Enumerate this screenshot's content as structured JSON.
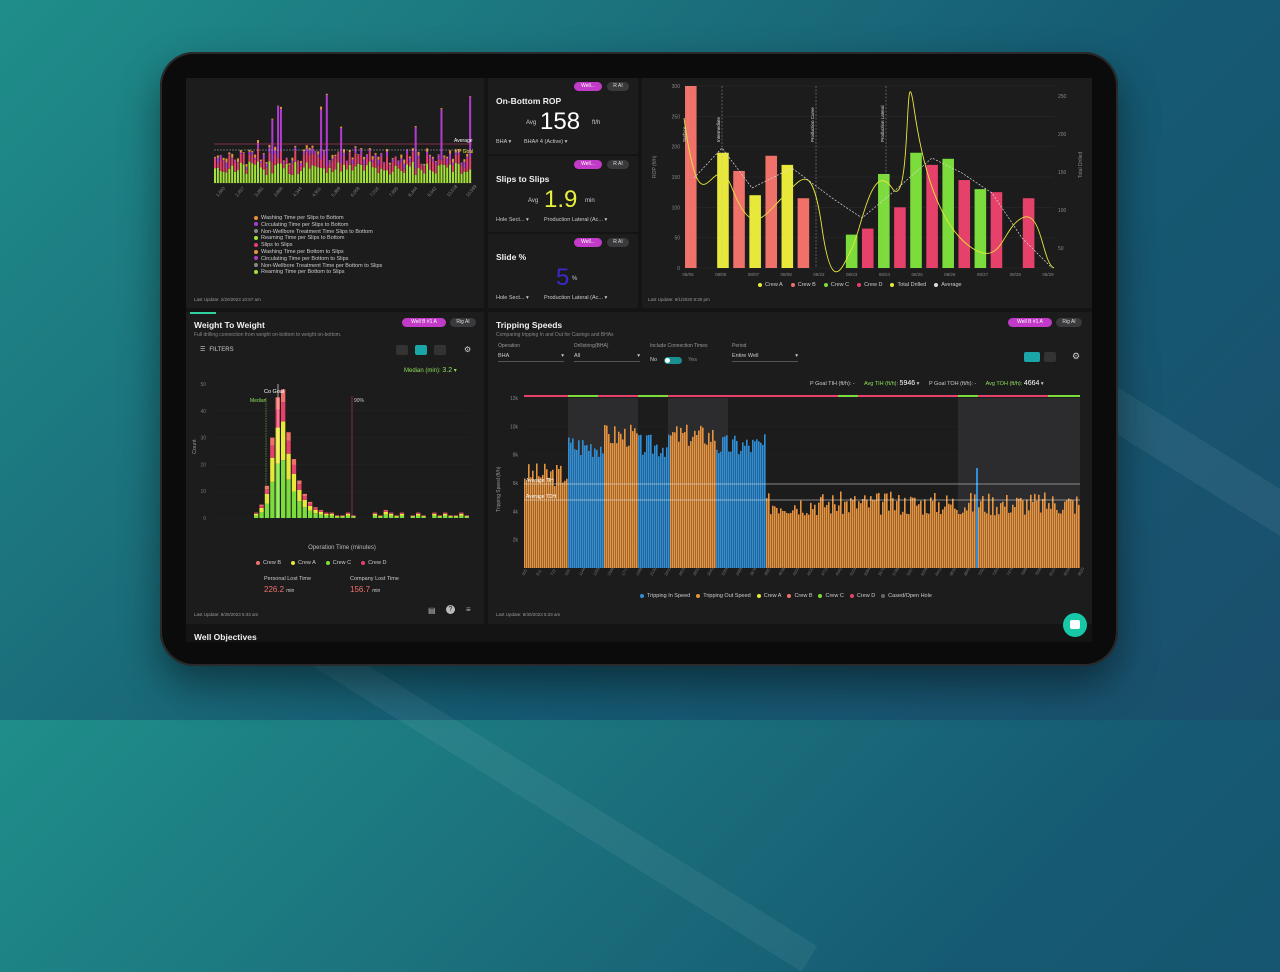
{
  "colors": {
    "magenta": "#c23bc8",
    "green": "#7cdc3c",
    "pink": "#e5416b",
    "yellow": "#e8e83a",
    "salmon": "#f0706a",
    "orange": "#e8943e",
    "blue": "#2f8fd8",
    "lime": "#a6e33a"
  },
  "top_left": {
    "legend": [
      "Washing Time per Slips to Bottom",
      "Circulating Time per Slips to Bottom",
      "Non-Wellbore Treatment Time Slips to Bottom",
      "Reaming Time per Slips to Bottom",
      "Slips to Slips",
      "Washing Time per Bottom to Slips",
      "Circulating Time per Bottom to Slips",
      "Non-Wellbore Treatment Time per Bottom to Slips",
      "Reaming Time per Bottom to Slips"
    ],
    "legend_colors": [
      "#e8943e",
      "#b03cd0",
      "#888888",
      "#a6e33a",
      "#e5416b",
      "#e8943e",
      "#b03cd0",
      "#888888",
      "#a6e33a"
    ],
    "average_label": "Average",
    "goal_label": "P Goal",
    "last_update": "Last Update: 2/20/2023 10:57 am",
    "x_ticks": [
      "1,660",
      "2,437",
      "3,391",
      "3,866",
      "4,344",
      "4,911",
      "5,389",
      "6,058",
      "7,016",
      "7,935",
      "8,344",
      "9,542",
      "10,518",
      "10,589"
    ]
  },
  "kpis": [
    {
      "title": "On-Bottom ROP",
      "avg_label": "Avg",
      "value": "158",
      "unit": "ft/h",
      "dd1": "BHA",
      "dd2": "BHA# 4 (Active)",
      "pill1": "Well...",
      "pill2": "R AI",
      "value_color": "#ffffff"
    },
    {
      "title": "Slips to Slips",
      "avg_label": "Avg",
      "value": "1.9",
      "unit": "min",
      "dd1": "Hole Sect...",
      "dd2": "Production Lateral (Ac...",
      "pill1": "Well...",
      "pill2": "R AI",
      "value_color": "#e8f03a"
    },
    {
      "title": "Slide %",
      "avg_label": "",
      "value": "5",
      "unit": "%",
      "dd1": "Hole Sect...",
      "dd2": "Production Lateral (Ac...",
      "pill1": "Well...",
      "pill2": "R AI",
      "value_color": "#3a2ac8"
    }
  ],
  "rop_chart": {
    "y_ticks": [
      "300",
      "250",
      "200",
      "150",
      "100",
      "50",
      "0"
    ],
    "y2_ticks": [
      "250",
      "200",
      "150",
      "100",
      "50"
    ],
    "ylabel": "ROP (ft/h)",
    "y2label": "Total Drilled",
    "x_ticks": [
      "08/05",
      "08/06",
      "08/07",
      "08/08",
      "08/22",
      "08/23",
      "08/24",
      "08/25",
      "08/26",
      "08/27",
      "08/28",
      "08/29"
    ],
    "annotations": [
      "Surface",
      "Intermediate",
      "Production Curve",
      "Production Lateral"
    ],
    "legend": [
      {
        "name": "Crew A",
        "color": "#e8e83a"
      },
      {
        "name": "Crew B",
        "color": "#f0706a"
      },
      {
        "name": "Crew C",
        "color": "#7cdc3c"
      },
      {
        "name": "Crew D",
        "color": "#e5416b"
      },
      {
        "name": "Total Drilled",
        "color": "#e8e83a"
      },
      {
        "name": "Average",
        "color": "#dddddd"
      }
    ],
    "last_update": "Last Update: 9/1/2020 8:30 pm"
  },
  "wtw": {
    "title": "Weight To Weight",
    "subtitle": "Full drilling connection from weight on-bottom to weight on-bottom.",
    "pill1": "Well B #1 A",
    "pill2": "Rig AI",
    "filters": "FILTERS",
    "median_label": "Median (min):",
    "median_value": "3.2",
    "y_ticks": [
      "50",
      "40",
      "30",
      "20",
      "10",
      "0"
    ],
    "ylabel": "Count",
    "xlabel": "Operation Time (minutes)",
    "goal_label": "Co Goal",
    "median_marker": "Median",
    "p90_label": "90%",
    "legend": [
      {
        "name": "Crew B",
        "color": "#f0706a"
      },
      {
        "name": "Crew A",
        "color": "#e8e83a"
      },
      {
        "name": "Crew C",
        "color": "#7cdc3c"
      },
      {
        "name": "Crew D",
        "color": "#e5416b"
      }
    ],
    "personal_lost_label": "Personal Lost Time",
    "personal_lost_value": "226.2",
    "personal_lost_unit": "min",
    "company_lost_label": "Company Lost Time",
    "company_lost_value": "156.7",
    "company_lost_unit": "min",
    "last_update": "Last Update: 8/30/2023 5:33 am"
  },
  "tripping": {
    "title": "Tripping Speeds",
    "subtitle": "Comparing tripping In and Out for Casings and BHAs",
    "pill1": "Well B #1 A",
    "pill2": "Rig AI",
    "operation_label": "Operation",
    "operation_value": "BHA",
    "drillstring_label": "Drillstring(BHA)",
    "drillstring_value": "All",
    "conn_label": "Include Connection Times",
    "no": "No",
    "yes": "Yes",
    "period_label": "Period",
    "period_value": "Entire Well",
    "goal_tih_label": "P Goal TIH (ft/h):",
    "goal_tih_value": "-",
    "avg_tih_label": "Avg TIH (ft/h):",
    "avg_tih_value": "5946",
    "goal_toh_label": "P Goal TOH (ft/h):",
    "goal_toh_value": "-",
    "avg_toh_label": "Avg TOH (ft/h):",
    "avg_toh_value": "4664",
    "y_ticks": [
      "12k",
      "10k",
      "8k",
      "6k",
      "4k",
      "2k"
    ],
    "ylabel": "Tripping Speed (ft/h)",
    "avg_tih_line": "Average TIH",
    "avg_toh_line": "Average TOH",
    "legend": [
      {
        "name": "Tripping In Speed",
        "color": "#2f8fd8"
      },
      {
        "name": "Tripping Out Speed",
        "color": "#e8943e"
      },
      {
        "name": "Crew A",
        "color": "#e8e83a"
      },
      {
        "name": "Crew B",
        "color": "#f0706a"
      },
      {
        "name": "Crew C",
        "color": "#7cdc3c"
      },
      {
        "name": "Crew D",
        "color": "#e5416b"
      },
      {
        "name": "Cased/Open Hole",
        "color": "#666666"
      }
    ],
    "last_update": "Last Update: 8/30/2023 5:33 am"
  },
  "bottom": {
    "well_objectives": "Well Objectives"
  }
}
